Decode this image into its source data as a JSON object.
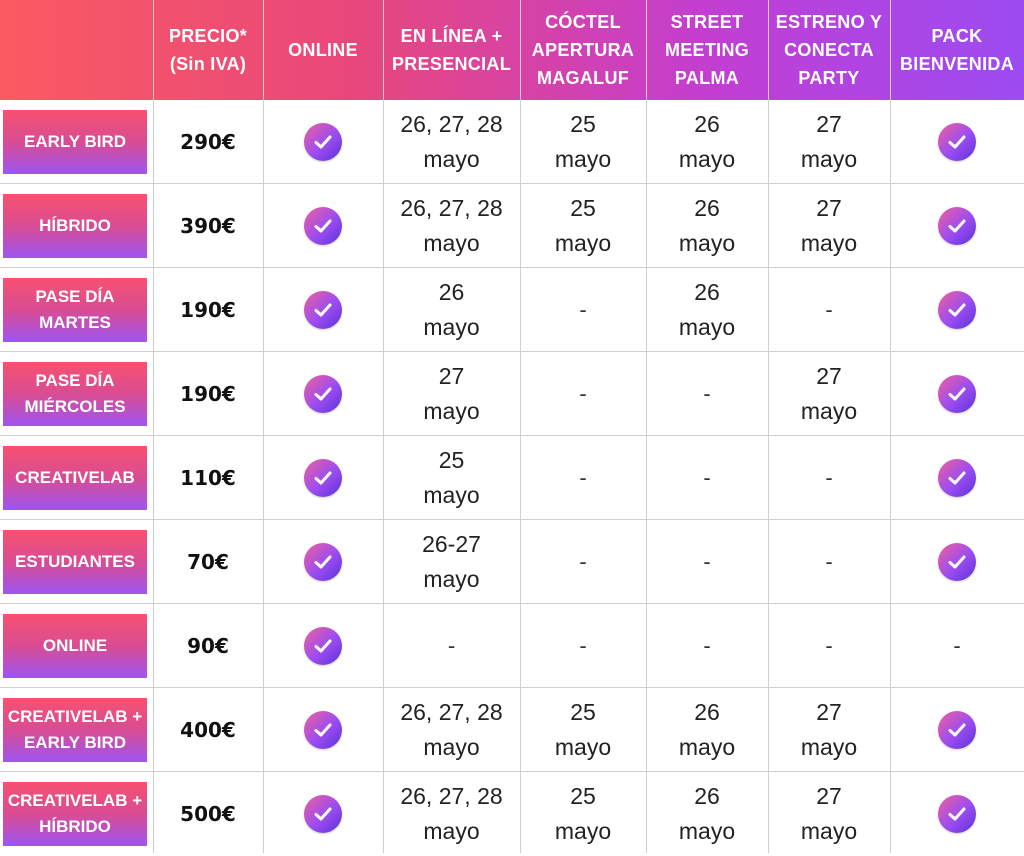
{
  "headers": [
    "",
    "PRECIO*\n(Sin IVA)",
    "ONLINE",
    "EN LÍNEA +\nPRESENCIAL",
    "CÓCTEL\nAPERTURA\nMAGALUF",
    "STREET\nMEETING\nPALMA",
    "ESTRENO Y\nCONECTA\nPARTY",
    "PACK\nBIENVENIDA"
  ],
  "rows": [
    {
      "label": "EARLY BIRD",
      "price": "290€",
      "online": "check",
      "en_linea": "26, 27, 28\nmayo",
      "coctel": "25\nmayo",
      "street": "26\nmayo",
      "estreno": "27\nmayo",
      "pack": "check"
    },
    {
      "label": "HÍBRIDO",
      "price": "390€",
      "online": "check",
      "en_linea": "26, 27, 28\nmayo",
      "coctel": "25\nmayo",
      "street": "26\nmayo",
      "estreno": "27\nmayo",
      "pack": "check"
    },
    {
      "label": "PASE DÍA\nMARTES",
      "price": "190€",
      "online": "check",
      "en_linea": "26\nmayo",
      "coctel": "-",
      "street": "26\nmayo",
      "estreno": "-",
      "pack": "check"
    },
    {
      "label": "PASE DÍA\nMIÉRCOLES",
      "price": "190€",
      "online": "check",
      "en_linea": "27\nmayo",
      "coctel": "-",
      "street": "-",
      "estreno": "27\nmayo",
      "pack": "check"
    },
    {
      "label": "CREATIVELAB",
      "price": "110€",
      "online": "check",
      "en_linea": "25\nmayo",
      "coctel": "-",
      "street": "-",
      "estreno": "-",
      "pack": "check"
    },
    {
      "label": "ESTUDIANTES",
      "price": "70€",
      "online": "check",
      "en_linea": "26-27\nmayo",
      "coctel": "-",
      "street": "-",
      "estreno": "-",
      "pack": "check"
    },
    {
      "label": "ONLINE",
      "price": "90€",
      "online": "check",
      "en_linea": "-",
      "coctel": "-",
      "street": "-",
      "estreno": "-",
      "pack": "-"
    },
    {
      "label": "CREATIVELAB +\nEARLY BIRD",
      "price": "400€",
      "online": "check",
      "en_linea": "26, 27, 28\nmayo",
      "coctel": "25\nmayo",
      "street": "26\nmayo",
      "estreno": "27\nmayo",
      "pack": "check"
    },
    {
      "label": "CREATIVELAB +\nHÍBRIDO",
      "price": "500€",
      "online": "check",
      "en_linea": "26, 27, 28\nmayo",
      "coctel": "25\nmayo",
      "street": "26\nmayo",
      "estreno": "27\nmayo",
      "pack": "check"
    }
  ],
  "icon": "check-circle-icon",
  "colors": {
    "accent_start": "#fb5a61",
    "accent_end": "#9b4cf2"
  }
}
